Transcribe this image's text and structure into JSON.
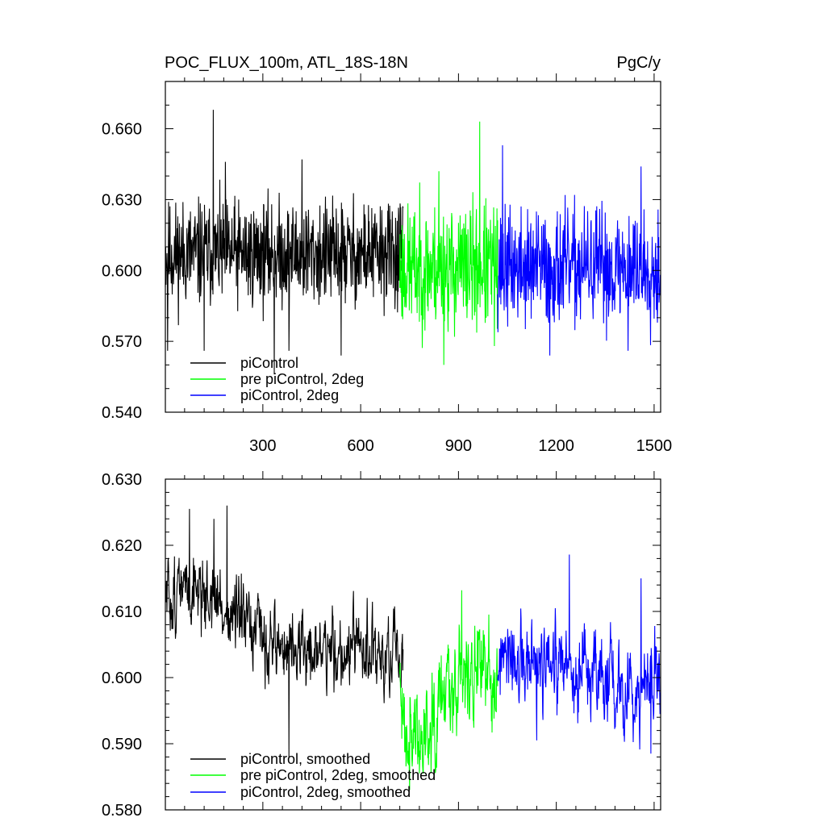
{
  "chart_data": [
    {
      "type": "line",
      "title_left": "POC_FLUX_100m, ATL_18S-18N",
      "title_right": "PgC/y",
      "xlabel": "",
      "ylabel": "",
      "xlim": [
        1,
        1520
      ],
      "ylim": [
        0.54,
        0.68
      ],
      "x_ticks": [
        300,
        600,
        900,
        1200,
        1500
      ],
      "x_tick_labels": [
        "300",
        "600",
        "900",
        "1200",
        "1500"
      ],
      "y_ticks": [
        0.54,
        0.57,
        0.6,
        0.63,
        0.66
      ],
      "y_tick_labels": [
        "0.540",
        "0.570",
        "0.600",
        "0.630",
        "0.660"
      ],
      "grid": false,
      "legend_position": "bottom-left",
      "series": [
        {
          "name": "piControl",
          "color": "#000000",
          "x_start": 1,
          "x_end": 730,
          "mean": 0.607,
          "amplitude": 0.011,
          "seed": 11,
          "peaks": [
            [
              148,
              0.668
            ],
            [
              120,
              0.566
            ],
            [
              8,
              0.566
            ],
            [
              185,
              0.646
            ],
            [
              335,
              0.556
            ],
            [
              380,
              0.566
            ],
            [
              420,
              0.647
            ],
            [
              540,
              0.564
            ]
          ]
        },
        {
          "name": "pre piControl, 2deg",
          "color": "#00ff00",
          "x_start": 720,
          "x_end": 1020,
          "mean": 0.601,
          "amplitude": 0.013,
          "seed": 23,
          "peaks": [
            [
              965,
              0.663
            ],
            [
              840,
              0.642
            ],
            [
              855,
              0.56
            ],
            [
              1010,
              0.568
            ]
          ]
        },
        {
          "name": "piControl, 2deg",
          "color": "#0000ff",
          "x_start": 1020,
          "x_end": 1520,
          "mean": 0.601,
          "amplitude": 0.012,
          "seed": 37,
          "peaks": [
            [
              1035,
              0.653
            ],
            [
              1460,
              0.644
            ],
            [
              1180,
              0.564
            ],
            [
              1420,
              0.566
            ]
          ]
        }
      ]
    },
    {
      "type": "line",
      "xlabel": "",
      "ylabel": "",
      "xlim": [
        1,
        1520
      ],
      "ylim": [
        0.58,
        0.63
      ],
      "x_ticks": [
        300,
        600,
        900,
        1200,
        1500
      ],
      "x_tick_labels": [],
      "y_ticks": [
        0.58,
        0.59,
        0.6,
        0.61,
        0.62,
        0.63
      ],
      "y_tick_labels": [
        "0.580",
        "0.590",
        "0.600",
        "0.610",
        "0.620",
        "0.630"
      ],
      "grid": false,
      "legend_position": "bottom-left",
      "series": [
        {
          "name": "piControl, smoothed",
          "color": "#000000",
          "x_start": 1,
          "x_end": 730,
          "mean": 0.608,
          "amplitude": 0.003,
          "seed": 51,
          "smooth": true,
          "trend": [
            [
              1,
              0.612
            ],
            [
              100,
              0.614
            ],
            [
              250,
              0.607
            ],
            [
              400,
              0.604
            ],
            [
              600,
              0.604
            ],
            [
              730,
              0.602
            ]
          ],
          "peaks": [
            [
              75,
              0.6255
            ],
            [
              190,
              0.626
            ],
            [
              150,
              0.624
            ],
            [
              380,
              0.588
            ]
          ]
        },
        {
          "name": "pre piControl, 2deg, smoothed",
          "color": "#00ff00",
          "x_start": 720,
          "x_end": 1020,
          "mean": 0.599,
          "amplitude": 0.004,
          "seed": 63,
          "smooth": true,
          "trend": [
            [
              720,
              0.596
            ],
            [
              780,
              0.59
            ],
            [
              850,
              0.6
            ],
            [
              1020,
              0.601
            ]
          ],
          "peaks": [
            [
              750,
              0.583
            ],
            [
              780,
              0.5855
            ],
            [
              910,
              0.6132
            ]
          ]
        },
        {
          "name": "piControl, 2deg, smoothed",
          "color": "#0000ff",
          "x_start": 1020,
          "x_end": 1520,
          "mean": 0.601,
          "amplitude": 0.0035,
          "seed": 77,
          "smooth": true,
          "trend": [
            [
              1020,
              0.602
            ],
            [
              1300,
              0.6
            ],
            [
              1520,
              0.598
            ]
          ],
          "peaks": [
            [
              1240,
              0.6186
            ],
            [
              1460,
              0.615
            ],
            [
              1490,
              0.5885
            ],
            [
              1140,
              0.5905
            ]
          ]
        }
      ]
    }
  ]
}
